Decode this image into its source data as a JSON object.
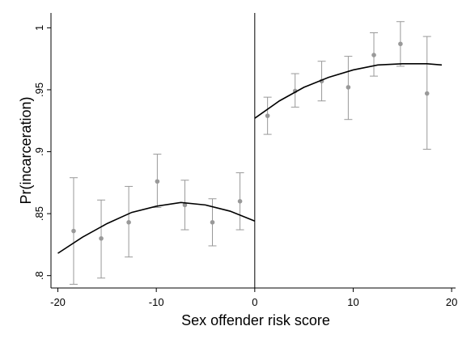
{
  "chart_data": {
    "type": "rd-scatter",
    "xlabel": "Sex offender risk score",
    "ylabel": "Pr(incarceration)",
    "xlim": [
      -20.7,
      20.4
    ],
    "ylim": [
      0.79,
      1.012
    ],
    "xticks": [
      -20,
      -10,
      0,
      10,
      20
    ],
    "yticks": [
      {
        "value": 0.8,
        "label": ".8"
      },
      {
        "value": 0.85,
        "label": ".85"
      },
      {
        "value": 0.9,
        "label": ".9"
      },
      {
        "value": 0.95,
        "label": ".95"
      },
      1
    ],
    "cutoff": 0,
    "points": {
      "color": "#999999",
      "x": [
        -18.4,
        -15.6,
        -12.8,
        -9.9,
        -7.1,
        -4.3,
        -1.5,
        1.3,
        4.1,
        6.8,
        9.5,
        12.1,
        14.8,
        17.5
      ],
      "values": [
        0.836,
        0.83,
        0.843,
        0.876,
        0.857,
        0.843,
        0.86,
        0.929,
        0.949,
        0.957,
        0.952,
        0.978,
        0.987,
        0.947
      ],
      "lower": [
        0.793,
        0.798,
        0.815,
        0.855,
        0.837,
        0.824,
        0.837,
        0.914,
        0.936,
        0.941,
        0.926,
        0.961,
        0.969,
        0.902
      ],
      "upper": [
        0.879,
        0.861,
        0.872,
        0.898,
        0.877,
        0.862,
        0.883,
        0.944,
        0.963,
        0.973,
        0.977,
        0.996,
        1.005,
        0.993
      ]
    },
    "fits": [
      {
        "color": "#000000",
        "x": [
          -20,
          -17.5,
          -15,
          -12.5,
          -10,
          -7.5,
          -5,
          -2.5,
          0
        ],
        "values": [
          0.818,
          0.831,
          0.842,
          0.851,
          0.856,
          0.859,
          0.857,
          0.852,
          0.844
        ]
      },
      {
        "color": "#000000",
        "x": [
          0,
          2.5,
          5,
          7.5,
          10,
          12.5,
          15,
          17.5,
          19
        ],
        "values": [
          0.927,
          0.941,
          0.952,
          0.96,
          0.966,
          0.97,
          0.971,
          0.971,
          0.97
        ]
      }
    ]
  }
}
